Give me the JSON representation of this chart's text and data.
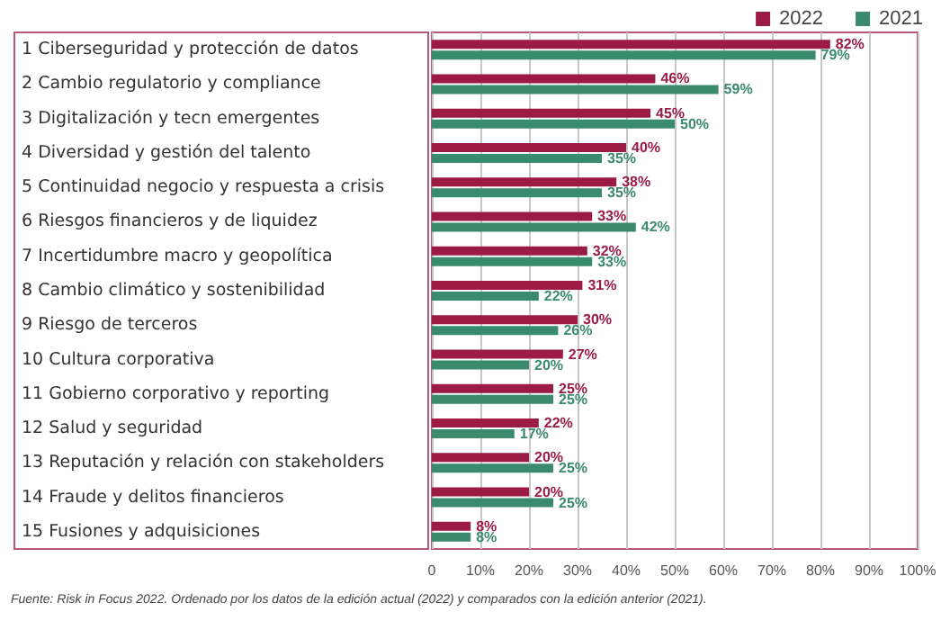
{
  "chart_data": {
    "type": "bar",
    "orientation": "horizontal",
    "categories": [
      "1 Ciberseguridad y protección de datos",
      "2 Cambio regulatorio y compliance",
      "3 Digitalización y tecn emergentes",
      "4 Diversidad y gestión del talento",
      "5 Continuidad negocio y respuesta a crisis",
      "6 Riesgos financieros y de liquidez",
      "7 Incertidumbre macro y geopolítica",
      "8 Cambio climático y sostenibilidad",
      "9 Riesgo de terceros",
      "10 Cultura corporativa",
      "11 Gobierno corporativo y reporting",
      "12 Salud y seguridad",
      "13 Reputación y relación con stakeholders",
      "14 Fraude y delitos financieros",
      "15 Fusiones y adquisiciones"
    ],
    "series": [
      {
        "name": "2022",
        "color": "#9b1b45",
        "values": [
          82,
          46,
          45,
          40,
          38,
          33,
          32,
          31,
          30,
          27,
          25,
          22,
          20,
          20,
          8
        ],
        "value_labels": [
          "82%",
          "46%",
          "45%",
          "40%",
          "38%",
          "33%",
          "32%",
          "31%",
          "30%",
          "27%",
          "25%",
          "22%",
          "20%",
          "20%",
          "8%"
        ]
      },
      {
        "name": "2021",
        "color": "#3a8a6e",
        "values": [
          79,
          59,
          50,
          35,
          35,
          42,
          33,
          22,
          26,
          20,
          25,
          17,
          25,
          25,
          8
        ],
        "value_labels": [
          "79%",
          "59%",
          "50%",
          "35%",
          "35%",
          "42%",
          "33%",
          "22%",
          "26%",
          "20%",
          "25%",
          "17%",
          "25%",
          "25%",
          "8%"
        ]
      }
    ],
    "xlim": [
      0,
      100
    ],
    "xticks": [
      0,
      {
        "value": 10,
        "label": "10%"
      },
      {
        "value": 20,
        "label": "20%"
      },
      {
        "value": 30,
        "label": "30%"
      },
      {
        "value": 40,
        "label": "40%"
      },
      {
        "value": 50,
        "label": "50%"
      },
      {
        "value": 60,
        "label": "60%"
      },
      {
        "value": 70,
        "label": "70%"
      },
      {
        "value": 80,
        "label": "80%"
      },
      {
        "value": 90,
        "label": "90%"
      },
      {
        "value": 100,
        "label": "100%"
      }
    ],
    "grid": "x",
    "legend": "top right",
    "annotations": [
      "Fuente: Risk in Focus 2022. Ordenado por los datos de la edición actual (2022) y comparados con la edición anterior (2021)."
    ]
  }
}
